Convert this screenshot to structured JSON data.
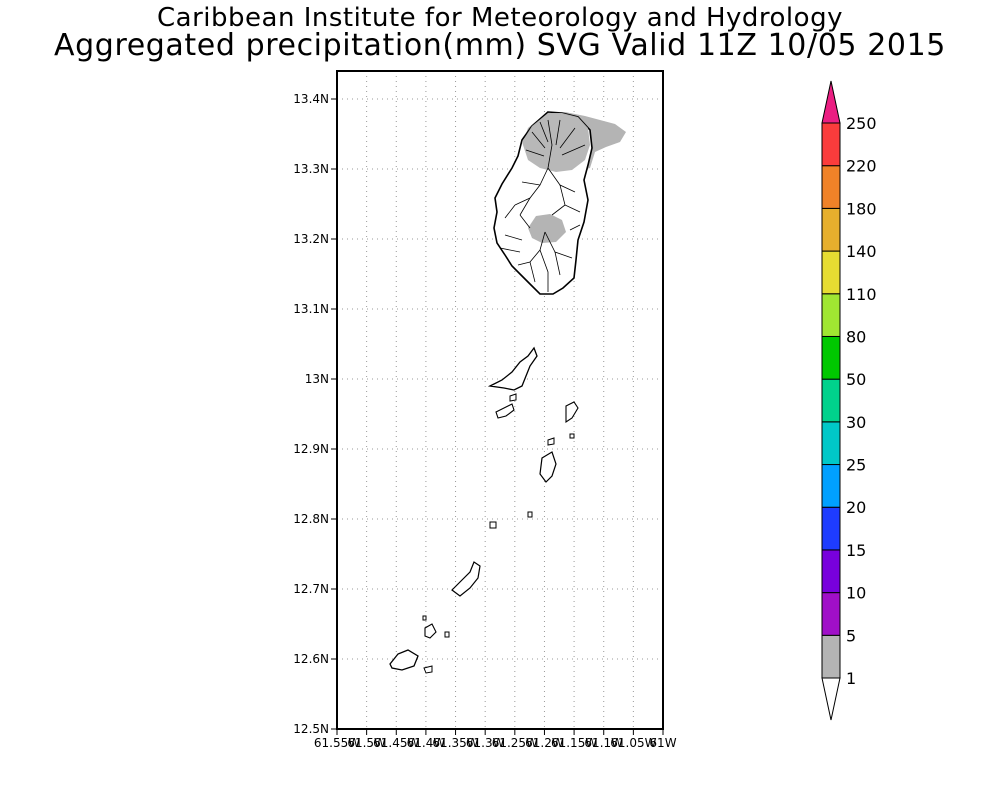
{
  "header": {
    "title": "Caribbean Institute for Meteorology and Hydrology",
    "subtitle": "Aggregated precipitation(mm) SVG Valid 11Z 10/05 2015"
  },
  "map": {
    "lat_labels": [
      "13.4N",
      "13.3N",
      "13.2N",
      "13.1N",
      "13N",
      "12.9N",
      "12.8N",
      "12.7N",
      "12.6N",
      "12.5N"
    ],
    "lon_labels": [
      "61.55W",
      "61.5W",
      "61.45W",
      "61.4W",
      "61.35W",
      "61.3W",
      "61.25W",
      "61.2W",
      "61.15W",
      "61.1W",
      "61.05W",
      "61W"
    ],
    "lat_range": [
      12.5,
      13.44
    ],
    "lon_range": [
      -61.55,
      -61.0
    ],
    "grid": true
  },
  "legend": {
    "labels": [
      "1",
      "5",
      "10",
      "15",
      "20",
      "25",
      "30",
      "50",
      "80",
      "110",
      "140",
      "180",
      "220",
      "250"
    ],
    "colors": [
      "#b4b4b4",
      "#a00fc8",
      "#7800dc",
      "#1e3cff",
      "#00a0ff",
      "#00c8c8",
      "#00d28c",
      "#00c800",
      "#a0e632",
      "#e6dc32",
      "#e6af2d",
      "#f08228",
      "#fa3c3c",
      "#eb1e82"
    ]
  }
}
